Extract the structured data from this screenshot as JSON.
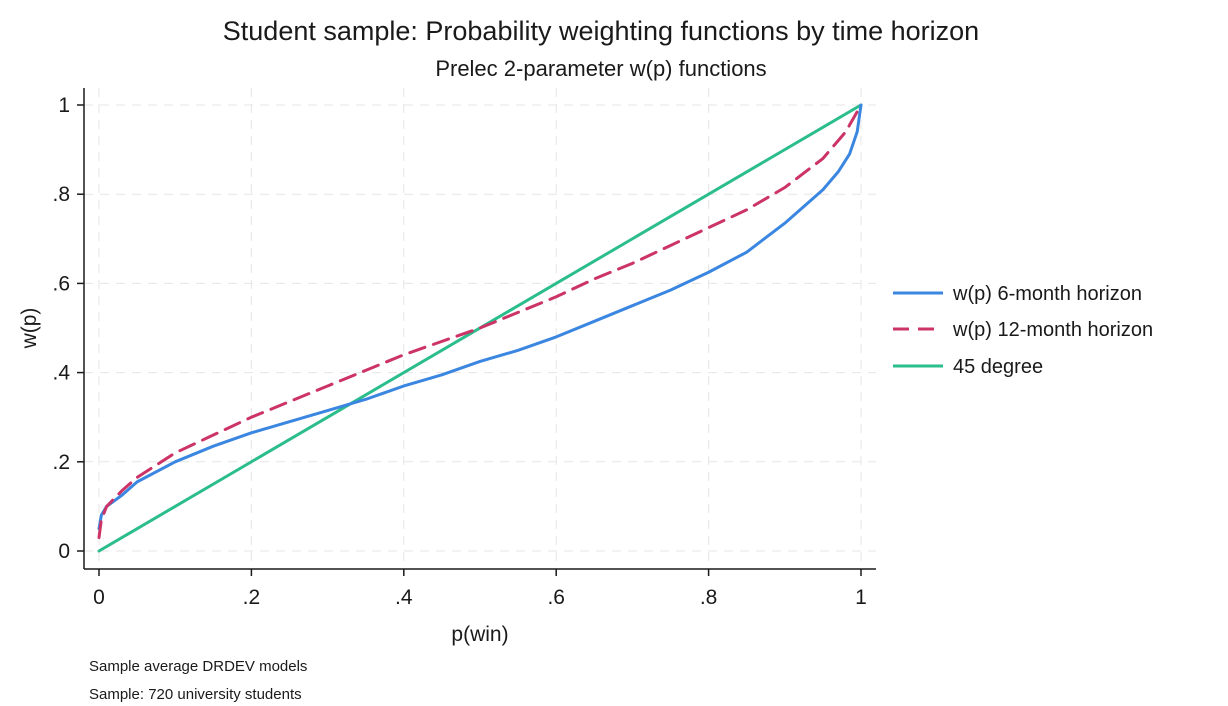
{
  "chart_data": {
    "type": "line",
    "title": "Student sample: Probability weighting functions by time horizon",
    "subtitle": "Prelec 2-parameter w(p) functions",
    "xlabel": "p(win)",
    "ylabel": "w(p)",
    "xlim": [
      0,
      1
    ],
    "ylim": [
      0,
      1
    ],
    "x_ticks": [
      0,
      0.2,
      0.4,
      0.6,
      0.8,
      1
    ],
    "x_tick_labels": [
      "0",
      ".2",
      ".4",
      ".6",
      ".8",
      "1"
    ],
    "y_ticks": [
      0,
      0.2,
      0.4,
      0.6,
      0.8,
      1
    ],
    "y_tick_labels": [
      "0",
      ".2",
      ".4",
      ".6",
      ".8",
      "1"
    ],
    "grid": true,
    "legend_position": "right",
    "series": [
      {
        "name": "w(p) 6-month horizon",
        "color": "#3a86e0",
        "style": "solid",
        "x": [
          0,
          0.003,
          0.01,
          0.03,
          0.05,
          0.1,
          0.15,
          0.2,
          0.25,
          0.3,
          0.35,
          0.4,
          0.45,
          0.5,
          0.55,
          0.6,
          0.65,
          0.7,
          0.75,
          0.8,
          0.85,
          0.9,
          0.95,
          0.97,
          0.985,
          0.995,
          1
        ],
        "values": [
          0.05,
          0.08,
          0.1,
          0.125,
          0.155,
          0.2,
          0.235,
          0.265,
          0.29,
          0.315,
          0.34,
          0.37,
          0.395,
          0.425,
          0.45,
          0.48,
          0.515,
          0.55,
          0.585,
          0.625,
          0.67,
          0.735,
          0.81,
          0.85,
          0.89,
          0.94,
          1
        ]
      },
      {
        "name": "w(p) 12-month horizon",
        "color": "#cc3366",
        "style": "dashed",
        "x": [
          0,
          0.003,
          0.01,
          0.03,
          0.05,
          0.1,
          0.15,
          0.2,
          0.25,
          0.3,
          0.35,
          0.4,
          0.45,
          0.5,
          0.55,
          0.6,
          0.65,
          0.7,
          0.75,
          0.8,
          0.85,
          0.9,
          0.95,
          0.98,
          1
        ],
        "values": [
          0.03,
          0.07,
          0.1,
          0.135,
          0.165,
          0.22,
          0.26,
          0.3,
          0.335,
          0.37,
          0.405,
          0.44,
          0.47,
          0.5,
          0.535,
          0.57,
          0.61,
          0.645,
          0.685,
          0.725,
          0.765,
          0.815,
          0.88,
          0.94,
          1
        ]
      },
      {
        "name": "45 degree",
        "color": "#2bbd8c",
        "style": "solid",
        "x": [
          0,
          1
        ],
        "values": [
          0,
          1
        ]
      }
    ]
  },
  "notes": [
    "Sample average DRDEV models",
    "Sample: 720 university students"
  ]
}
